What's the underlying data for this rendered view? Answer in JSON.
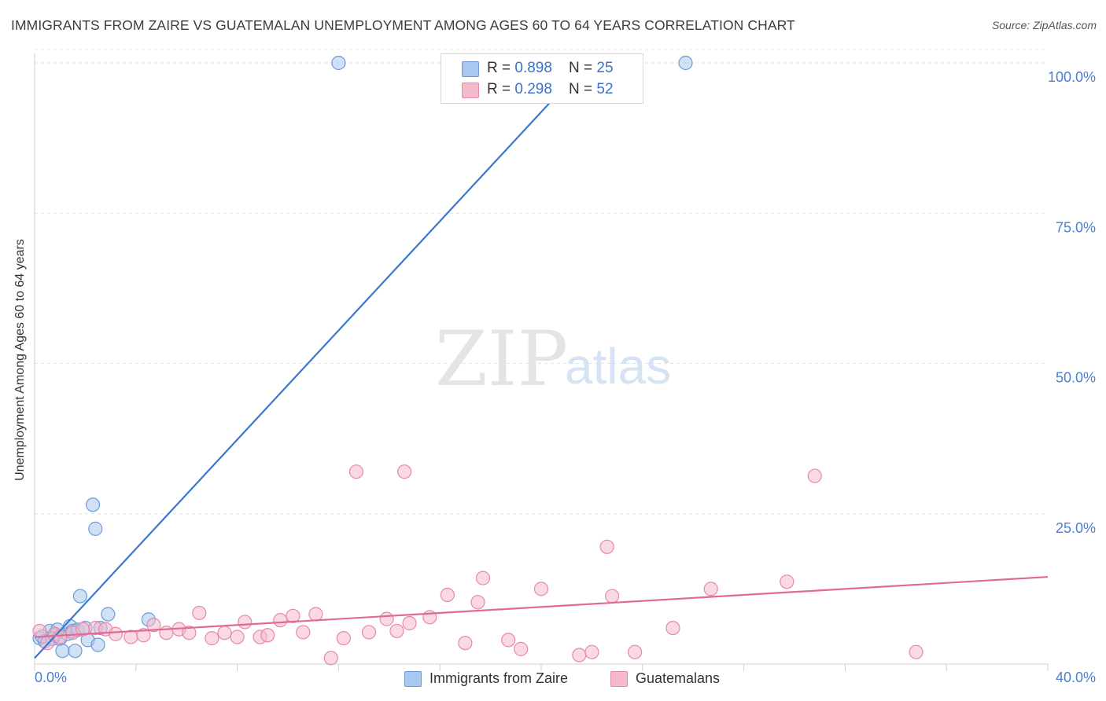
{
  "header": {
    "title": "IMMIGRANTS FROM ZAIRE VS GUATEMALAN UNEMPLOYMENT AMONG AGES 60 TO 64 YEARS CORRELATION CHART",
    "source": "Source: ZipAtlas.com"
  },
  "watermark": {
    "zip": "ZIP",
    "atlas": "atlas"
  },
  "legend": {
    "rows": [
      {
        "r_label": "R = ",
        "r_value": "0.898",
        "n_label": "N = ",
        "n_value": "25",
        "color": "#a9c8ef",
        "edge": "#6d9ad8"
      },
      {
        "r_label": "R = ",
        "r_value": "0.298",
        "n_label": "N = ",
        "n_value": "52",
        "color": "#f6b9cc",
        "edge": "#e48aa8"
      }
    ]
  },
  "chart_data": {
    "type": "scatter",
    "title": "IMMIGRANTS FROM ZAIRE VS GUATEMALAN UNEMPLOYMENT AMONG AGES 60 TO 64 YEARS CORRELATION CHART",
    "xlabel": "",
    "ylabel": "Unemployment Among Ages 60 to 64 years",
    "xlim": [
      0,
      40
    ],
    "ylim": [
      0,
      100
    ],
    "x_tick_labels": [
      "0.0%",
      "40.0%"
    ],
    "y_ticks": [
      25,
      50,
      75,
      100
    ],
    "y_tick_labels": [
      "25.0%",
      "50.0%",
      "75.0%",
      "100.0%"
    ],
    "grid": true,
    "series": [
      {
        "name": "Immigrants from Zaire",
        "color": "#6d9ad8",
        "fill": "#a9c8ef",
        "line_color": "#3a78d0",
        "trend": [
          [
            0.0,
            1.0
          ],
          [
            21.8,
            100.0
          ]
        ],
        "points": [
          [
            0.2,
            4.3
          ],
          [
            0.4,
            3.8
          ],
          [
            0.6,
            5.5
          ],
          [
            0.8,
            4.8
          ],
          [
            1.0,
            4.2
          ],
          [
            1.1,
            2.2
          ],
          [
            1.3,
            5.0
          ],
          [
            1.4,
            6.3
          ],
          [
            1.5,
            5.5
          ],
          [
            1.7,
            5.7
          ],
          [
            1.8,
            11.3
          ],
          [
            2.0,
            6.0
          ],
          [
            2.1,
            4.0
          ],
          [
            2.3,
            26.5
          ],
          [
            2.4,
            22.5
          ],
          [
            2.5,
            3.2
          ],
          [
            2.6,
            6.0
          ],
          [
            2.9,
            8.3
          ],
          [
            4.5,
            7.4
          ],
          [
            12.0,
            100.0
          ],
          [
            25.7,
            100.0
          ],
          [
            0.3,
            4.6
          ],
          [
            0.9,
            5.7
          ],
          [
            1.6,
            2.2
          ],
          [
            0.7,
            4.2
          ]
        ]
      },
      {
        "name": "Guatemalans",
        "color": "#e48aa8",
        "fill": "#f6b9cc",
        "line_color": "#e06a95",
        "trend": [
          [
            0.0,
            4.5
          ],
          [
            40.0,
            14.5
          ]
        ],
        "points": [
          [
            0.2,
            5.5
          ],
          [
            0.5,
            3.5
          ],
          [
            0.8,
            5.0
          ],
          [
            1.0,
            4.5
          ],
          [
            1.5,
            5.2
          ],
          [
            1.9,
            5.8
          ],
          [
            2.4,
            6.0
          ],
          [
            2.8,
            5.8
          ],
          [
            3.2,
            5.0
          ],
          [
            3.8,
            4.5
          ],
          [
            4.3,
            4.8
          ],
          [
            4.7,
            6.5
          ],
          [
            5.2,
            5.2
          ],
          [
            5.7,
            5.8
          ],
          [
            6.1,
            5.2
          ],
          [
            6.5,
            8.5
          ],
          [
            7.0,
            4.3
          ],
          [
            7.5,
            5.2
          ],
          [
            8.0,
            4.5
          ],
          [
            8.3,
            7.0
          ],
          [
            8.9,
            4.5
          ],
          [
            9.2,
            4.8
          ],
          [
            9.7,
            7.3
          ],
          [
            10.2,
            8.0
          ],
          [
            10.6,
            5.3
          ],
          [
            11.1,
            8.3
          ],
          [
            11.7,
            1.0
          ],
          [
            12.2,
            4.3
          ],
          [
            12.7,
            32.0
          ],
          [
            13.2,
            5.3
          ],
          [
            13.9,
            7.5
          ],
          [
            14.3,
            5.5
          ],
          [
            14.6,
            32.0
          ],
          [
            14.8,
            6.8
          ],
          [
            15.6,
            7.8
          ],
          [
            16.3,
            11.5
          ],
          [
            17.0,
            3.5
          ],
          [
            17.5,
            10.3
          ],
          [
            17.7,
            14.3
          ],
          [
            18.7,
            4.0
          ],
          [
            19.2,
            2.5
          ],
          [
            20.0,
            12.5
          ],
          [
            21.5,
            1.5
          ],
          [
            22.0,
            2.0
          ],
          [
            22.6,
            19.5
          ],
          [
            22.8,
            11.3
          ],
          [
            23.7,
            2.0
          ],
          [
            25.2,
            6.0
          ],
          [
            26.7,
            12.5
          ],
          [
            29.7,
            13.7
          ],
          [
            30.8,
            31.3
          ],
          [
            34.8,
            2.0
          ]
        ]
      }
    ]
  }
}
